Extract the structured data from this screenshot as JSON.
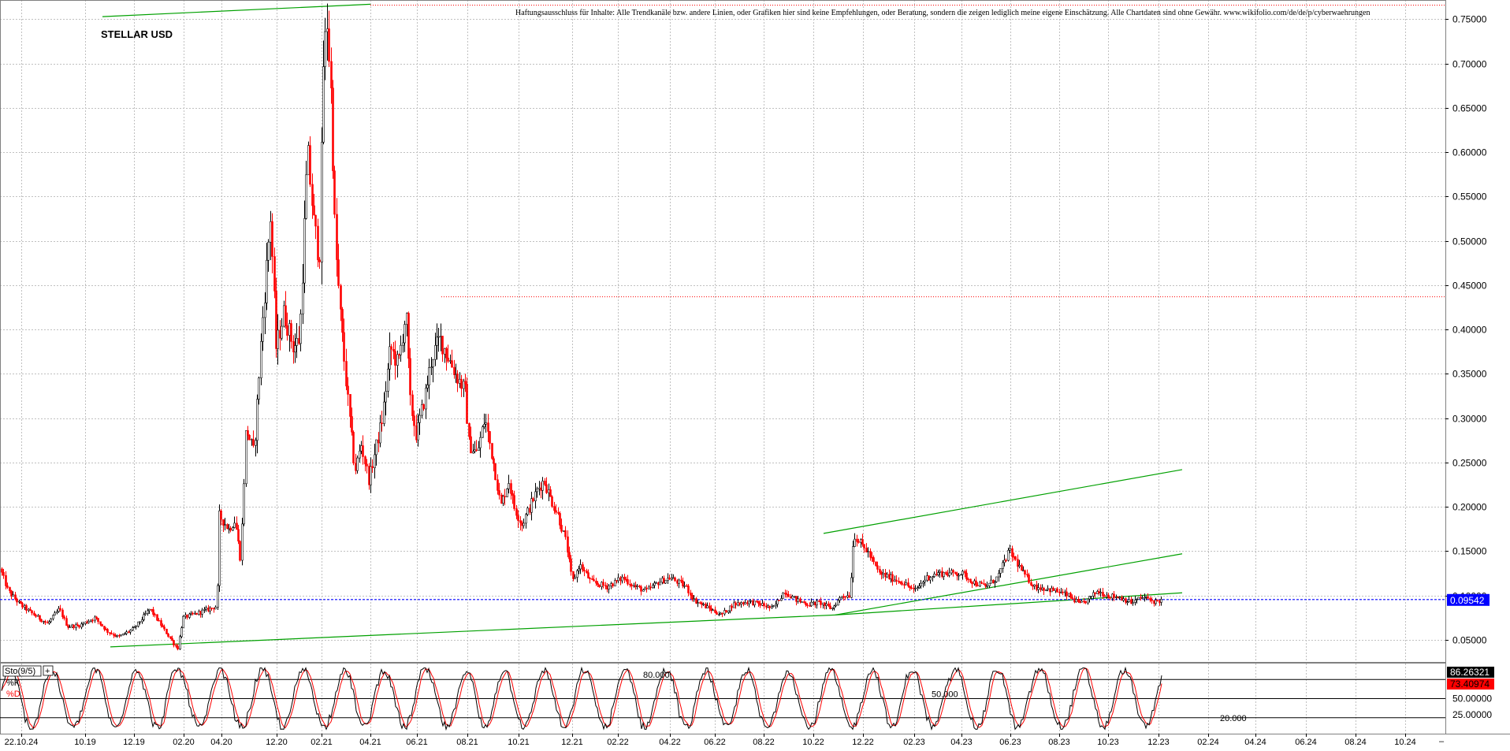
{
  "chart_data": [
    {
      "type": "candlestick",
      "title": "STELLAR USD",
      "disclaimer": "Haftungsausschluss für Inhalte: Alle Trendkanäle bzw. andere Linien, oder Grafiken hier sind keine Empfehlungen, oder Beratung, sondern die zeigen lediglich meine eigene Einschätzung. Alle Chartdaten sind ohne Gewähr.  www.wikifolio.com/de/de/p/cyberwaehrungen",
      "colors": {
        "up": "#000000",
        "down": "#ff0000",
        "trend": "#00a000",
        "price_line": "#0000ff",
        "grid": "#c0c0c0",
        "current_badge": "#0000ff"
      },
      "yaxis": {
        "side": "right",
        "ylim": [
          0.025,
          0.77
        ],
        "ticks": [
          "0.05000",
          "0.10000",
          "0.15000",
          "0.20000",
          "0.25000",
          "0.30000",
          "0.35000",
          "0.40000",
          "0.45000",
          "0.50000",
          "0.55000",
          "0.60000",
          "0.65000",
          "0.70000",
          "0.75000"
        ]
      },
      "xaxis": {
        "ticks": [
          "22.10.24",
          "10.19",
          "12.19",
          "02.20",
          "04.20",
          "12.20",
          "02.21",
          "04.21",
          "06.21",
          "08.21",
          "10.21",
          "12.21",
          "02.22",
          "04.22",
          "06.22",
          "08.22",
          "10.22",
          "12.22",
          "02.23",
          "04.23",
          "06.23",
          "08.23",
          "10.23",
          "12.23",
          "02.24",
          "04.24",
          "06.24",
          "08.24",
          "10.24"
        ]
      },
      "current_price": "0.09542",
      "current_value": 0.09542,
      "resistance_level": 0.437,
      "top_level": 0.766,
      "path": [
        [
          0,
          0.13
        ],
        [
          10,
          0.105
        ],
        [
          25,
          0.09
        ],
        [
          40,
          0.08
        ],
        [
          60,
          0.068
        ],
        [
          75,
          0.085
        ],
        [
          85,
          0.065
        ],
        [
          100,
          0.066
        ],
        [
          120,
          0.075
        ],
        [
          135,
          0.06
        ],
        [
          150,
          0.053
        ],
        [
          170,
          0.063
        ],
        [
          190,
          0.085
        ],
        [
          205,
          0.065
        ],
        [
          225,
          0.04
        ],
        [
          232,
          0.075
        ],
        [
          250,
          0.08
        ],
        [
          275,
          0.088
        ],
        [
          278,
          0.19
        ],
        [
          290,
          0.175
        ],
        [
          298,
          0.185
        ],
        [
          305,
          0.14
        ],
        [
          312,
          0.29
        ],
        [
          322,
          0.26
        ],
        [
          332,
          0.4
        ],
        [
          343,
          0.53
        ],
        [
          350,
          0.38
        ],
        [
          360,
          0.42
        ],
        [
          372,
          0.38
        ],
        [
          380,
          0.39
        ],
        [
          390,
          0.6
        ],
        [
          398,
          0.52
        ],
        [
          405,
          0.48
        ],
        [
          410,
          0.7
        ],
        [
          415,
          0.75
        ],
        [
          420,
          0.66
        ],
        [
          425,
          0.5
        ],
        [
          432,
          0.41
        ],
        [
          440,
          0.33
        ],
        [
          450,
          0.24
        ],
        [
          458,
          0.27
        ],
        [
          468,
          0.23
        ],
        [
          475,
          0.26
        ],
        [
          485,
          0.3
        ],
        [
          495,
          0.38
        ],
        [
          505,
          0.36
        ],
        [
          515,
          0.42
        ],
        [
          520,
          0.32
        ],
        [
          528,
          0.28
        ],
        [
          540,
          0.33
        ],
        [
          548,
          0.37
        ],
        [
          558,
          0.39
        ],
        [
          568,
          0.37
        ],
        [
          578,
          0.35
        ],
        [
          590,
          0.33
        ],
        [
          595,
          0.27
        ],
        [
          605,
          0.26
        ],
        [
          615,
          0.3
        ],
        [
          628,
          0.24
        ],
        [
          635,
          0.2
        ],
        [
          645,
          0.23
        ],
        [
          652,
          0.2
        ],
        [
          662,
          0.18
        ],
        [
          672,
          0.2
        ],
        [
          682,
          0.22
        ],
        [
          690,
          0.23
        ],
        [
          698,
          0.21
        ],
        [
          708,
          0.19
        ],
        [
          718,
          0.16
        ],
        [
          726,
          0.115
        ],
        [
          735,
          0.135
        ],
        [
          750,
          0.115
        ],
        [
          770,
          0.11
        ],
        [
          790,
          0.12
        ],
        [
          805,
          0.11
        ],
        [
          820,
          0.105
        ],
        [
          835,
          0.115
        ],
        [
          850,
          0.12
        ],
        [
          870,
          0.11
        ],
        [
          880,
          0.095
        ],
        [
          900,
          0.085
        ],
        [
          915,
          0.078
        ],
        [
          930,
          0.09
        ],
        [
          950,
          0.093
        ],
        [
          965,
          0.09
        ],
        [
          980,
          0.085
        ],
        [
          995,
          0.105
        ],
        [
          1010,
          0.095
        ],
        [
          1025,
          0.09
        ],
        [
          1040,
          0.092
        ],
        [
          1055,
          0.085
        ],
        [
          1068,
          0.1
        ],
        [
          1078,
          0.1
        ],
        [
          1083,
          0.17
        ],
        [
          1090,
          0.16
        ],
        [
          1100,
          0.15
        ],
        [
          1115,
          0.125
        ],
        [
          1130,
          0.12
        ],
        [
          1145,
          0.115
        ],
        [
          1160,
          0.105
        ],
        [
          1175,
          0.12
        ],
        [
          1190,
          0.125
        ],
        [
          1205,
          0.125
        ],
        [
          1220,
          0.125
        ],
        [
          1235,
          0.115
        ],
        [
          1250,
          0.11
        ],
        [
          1265,
          0.12
        ],
        [
          1280,
          0.15
        ],
        [
          1288,
          0.14
        ],
        [
          1298,
          0.125
        ],
        [
          1312,
          0.11
        ],
        [
          1325,
          0.108
        ],
        [
          1340,
          0.105
        ],
        [
          1355,
          0.1
        ],
        [
          1370,
          0.09
        ],
        [
          1380,
          0.095
        ],
        [
          1392,
          0.105
        ],
        [
          1405,
          0.1
        ],
        [
          1420,
          0.098
        ],
        [
          1435,
          0.092
        ],
        [
          1450,
          0.098
        ],
        [
          1465,
          0.093
        ],
        [
          1475,
          0.095
        ]
      ],
      "trendlines": [
        {
          "points": [
            [
              130,
              0.753
            ],
            [
              470,
              0.767
            ]
          ]
        },
        {
          "points": [
            [
              140,
              0.042
            ],
            [
              1060,
              0.078
            ]
          ]
        },
        {
          "points": [
            [
              1060,
              0.078
            ],
            [
              1500,
              0.103
            ]
          ]
        },
        {
          "points": [
            [
              1060,
              0.078
            ],
            [
              1500,
              0.147
            ]
          ]
        },
        {
          "points": [
            [
              1045,
              0.17
            ],
            [
              1500,
              0.242
            ]
          ]
        }
      ]
    },
    {
      "type": "line",
      "title": "Sto(9/5)",
      "legend": [
        "%K",
        "%D"
      ],
      "levels": [
        {
          "label": "80.000",
          "value": 80
        },
        {
          "label": "50.000",
          "value": 50
        },
        {
          "label": "20.000",
          "value": 20
        }
      ],
      "yaxis": {
        "ylim": [
          0,
          100
        ],
        "ticks": [
          "50.00000",
          "25.00000"
        ]
      },
      "current_k": "86.26321",
      "current_d": "73.40974",
      "current_k_value": 86.26,
      "current_d_value": 73.41,
      "colors": {
        "k": "#000000",
        "d": "#ff0000"
      }
    }
  ]
}
